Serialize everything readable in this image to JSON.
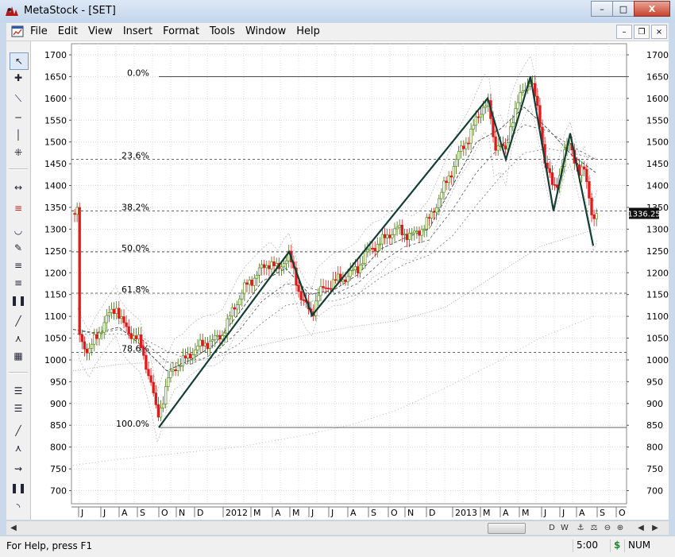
{
  "window": {
    "title": "MetaStock - [SET]",
    "minimize": "–",
    "maximize": "□",
    "close": "X"
  },
  "menu": {
    "file": "File",
    "edit": "Edit",
    "view": "View",
    "insert": "Insert",
    "format": "Format",
    "tools": "Tools",
    "window": "Window",
    "help": "Help"
  },
  "toolbar": {
    "icons": [
      "pointer-icon",
      "crosshair-icon",
      "trendline-icon",
      "horizontal-line-icon",
      "vertical-line-icon",
      "cycle-lines-icon",
      "zoom-icon",
      "gann-fan-icon",
      "arc-icon",
      "pencil-icon",
      "fibonacci-retracement-icon",
      "fibonacci-extension-icon",
      "time-zones-icon",
      "line-icon",
      "speed-resistance-icon",
      "grid-icon",
      "quadrant-lines-icon",
      "tirone-levels-icon",
      "channel-icon",
      "fan-icon",
      "projection-icon",
      "wave-icon",
      "arc-tool-icon"
    ]
  },
  "chart_data": {
    "type": "candlestick",
    "symbol": "SET",
    "y_ticks": [
      700,
      750,
      800,
      850,
      900,
      950,
      1000,
      1050,
      1100,
      1150,
      1200,
      1250,
      1300,
      1350,
      1400,
      1450,
      1500,
      1550,
      1600,
      1650,
      1700
    ],
    "ylim": [
      675,
      1720
    ],
    "x_labels": [
      "J",
      "J",
      "A",
      "S",
      "O",
      "N",
      "D",
      "2012",
      "M",
      "A",
      "M",
      "J",
      "J",
      "A",
      "S",
      "O",
      "N",
      "D",
      "2013",
      "M",
      "A",
      "M",
      "J",
      "J",
      "A",
      "S",
      "O"
    ],
    "last_price_label": "1336.25",
    "last_price": 1336.25,
    "fibonacci": {
      "high": 1650,
      "low": 845,
      "levels": [
        {
          "label": "0.0%",
          "value": 1650,
          "solid": true
        },
        {
          "label": "23.6%",
          "value": 1460,
          "solid": false
        },
        {
          "label": "38.2%",
          "value": 1342,
          "solid": false
        },
        {
          "label": "50.0%",
          "value": 1248,
          "solid": false
        },
        {
          "label": "61.8%",
          "value": 1153,
          "solid": false
        },
        {
          "label": "78.6%",
          "value": 1017,
          "solid": false
        },
        {
          "label": "100.0%",
          "value": 845,
          "solid": true
        }
      ]
    },
    "zigzag": [
      {
        "x": 200,
        "value": 845
      },
      {
        "x": 364,
        "value": 1248
      },
      {
        "x": 393,
        "value": 1102
      },
      {
        "x": 614,
        "value": 1600
      },
      {
        "x": 637,
        "value": 1460
      },
      {
        "x": 668,
        "value": 1650
      },
      {
        "x": 697,
        "value": 1342
      },
      {
        "x": 718,
        "value": 1520
      },
      {
        "x": 747,
        "value": 1262
      }
    ],
    "price_anchors": [
      [
        98,
        1065
      ],
      [
        104,
        1040
      ],
      [
        112,
        1018
      ],
      [
        120,
        1050
      ],
      [
        130,
        1080
      ],
      [
        138,
        1105
      ],
      [
        146,
        1125
      ],
      [
        152,
        1090
      ],
      [
        160,
        1070
      ],
      [
        168,
        1055
      ],
      [
        176,
        1040
      ],
      [
        184,
        990
      ],
      [
        192,
        930
      ],
      [
        198,
        870
      ],
      [
        204,
        900
      ],
      [
        212,
        955
      ],
      [
        220,
        985
      ],
      [
        230,
        995
      ],
      [
        240,
        1015
      ],
      [
        250,
        1030
      ],
      [
        260,
        1040
      ],
      [
        270,
        1045
      ],
      [
        280,
        1060
      ],
      [
        290,
        1100
      ],
      [
        300,
        1140
      ],
      [
        310,
        1170
      ],
      [
        320,
        1190
      ],
      [
        330,
        1210
      ],
      [
        340,
        1225
      ],
      [
        350,
        1205
      ],
      [
        358,
        1230
      ],
      [
        364,
        1240
      ],
      [
        370,
        1200
      ],
      [
        378,
        1150
      ],
      [
        386,
        1120
      ],
      [
        393,
        1105
      ],
      [
        400,
        1150
      ],
      [
        410,
        1165
      ],
      [
        420,
        1180
      ],
      [
        430,
        1185
      ],
      [
        440,
        1195
      ],
      [
        450,
        1210
      ],
      [
        460,
        1240
      ],
      [
        470,
        1260
      ],
      [
        480,
        1270
      ],
      [
        490,
        1290
      ],
      [
        500,
        1300
      ],
      [
        510,
        1290
      ],
      [
        520,
        1285
      ],
      [
        530,
        1300
      ],
      [
        540,
        1320
      ],
      [
        550,
        1360
      ],
      [
        560,
        1400
      ],
      [
        570,
        1440
      ],
      [
        580,
        1480
      ],
      [
        590,
        1510
      ],
      [
        600,
        1550
      ],
      [
        610,
        1590
      ],
      [
        616,
        1580
      ],
      [
        622,
        1490
      ],
      [
        630,
        1500
      ],
      [
        637,
        1470
      ],
      [
        644,
        1550
      ],
      [
        652,
        1590
      ],
      [
        660,
        1620
      ],
      [
        668,
        1645
      ],
      [
        674,
        1600
      ],
      [
        680,
        1540
      ],
      [
        686,
        1460
      ],
      [
        692,
        1420
      ],
      [
        697,
        1390
      ],
      [
        704,
        1420
      ],
      [
        712,
        1480
      ],
      [
        718,
        1500
      ],
      [
        724,
        1460
      ],
      [
        730,
        1420
      ],
      [
        736,
        1440
      ],
      [
        742,
        1380
      ],
      [
        747,
        1310
      ],
      [
        752,
        1336
      ]
    ],
    "moving_averages": {
      "ma_short": [
        [
          92,
          1070
        ],
        [
          120,
          1062
        ],
        [
          150,
          1075
        ],
        [
          180,
          1030
        ],
        [
          210,
          975
        ],
        [
          240,
          1000
        ],
        [
          270,
          1035
        ],
        [
          300,
          1105
        ],
        [
          330,
          1180
        ],
        [
          360,
          1210
        ],
        [
          390,
          1150
        ],
        [
          420,
          1160
        ],
        [
          450,
          1195
        ],
        [
          480,
          1255
        ],
        [
          510,
          1280
        ],
        [
          540,
          1300
        ],
        [
          570,
          1400
        ],
        [
          600,
          1500
        ],
        [
          630,
          1530
        ],
        [
          660,
          1580
        ],
        [
          690,
          1530
        ],
        [
          720,
          1470
        ],
        [
          750,
          1430
        ]
      ],
      "ma_mid": [
        [
          92,
          1070
        ],
        [
          120,
          1060
        ],
        [
          150,
          1070
        ],
        [
          180,
          1045
        ],
        [
          210,
          995
        ],
        [
          240,
          990
        ],
        [
          270,
          1015
        ],
        [
          300,
          1065
        ],
        [
          330,
          1135
        ],
        [
          360,
          1175
        ],
        [
          390,
          1165
        ],
        [
          420,
          1150
        ],
        [
          450,
          1175
        ],
        [
          480,
          1225
        ],
        [
          510,
          1260
        ],
        [
          540,
          1275
        ],
        [
          570,
          1345
        ],
        [
          600,
          1430
        ],
        [
          630,
          1490
        ],
        [
          660,
          1540
        ],
        [
          690,
          1525
        ],
        [
          720,
          1490
        ],
        [
          750,
          1460
        ]
      ],
      "ma_long": [
        [
          92,
          1060
        ],
        [
          120,
          1058
        ],
        [
          150,
          1060
        ],
        [
          180,
          1050
        ],
        [
          210,
          1020
        ],
        [
          240,
          1000
        ],
        [
          270,
          1005
        ],
        [
          300,
          1035
        ],
        [
          330,
          1085
        ],
        [
          360,
          1125
        ],
        [
          390,
          1135
        ],
        [
          420,
          1135
        ],
        [
          450,
          1150
        ],
        [
          480,
          1190
        ],
        [
          510,
          1220
        ],
        [
          540,
          1240
        ],
        [
          570,
          1285
        ],
        [
          600,
          1355
        ],
        [
          630,
          1420
        ],
        [
          660,
          1475
        ],
        [
          690,
          1485
        ],
        [
          720,
          1475
        ],
        [
          750,
          1460
        ]
      ],
      "ma_200": [
        [
          92,
          975
        ],
        [
          150,
          990
        ],
        [
          200,
          995
        ],
        [
          260,
          1000
        ],
        [
          320,
          1030
        ],
        [
          380,
          1055
        ],
        [
          440,
          1075
        ],
        [
          500,
          1090
        ],
        [
          560,
          1120
        ],
        [
          620,
          1190
        ],
        [
          680,
          1260
        ],
        [
          750,
          1300
        ]
      ],
      "ma_slow": [
        [
          92,
          758
        ],
        [
          150,
          772
        ],
        [
          220,
          785
        ],
        [
          300,
          800
        ],
        [
          380,
          826
        ],
        [
          440,
          850
        ],
        [
          500,
          885
        ],
        [
          560,
          935
        ],
        [
          620,
          990
        ],
        [
          680,
          1050
        ],
        [
          750,
          1102
        ]
      ]
    }
  },
  "scrollbar": {
    "left": "◀",
    "right": "▶",
    "icons": [
      "day-view-icon",
      "week-view-icon",
      "zoom-out-icon",
      "zoom-in-icon",
      "fit-icon",
      "prev-icon",
      "next-icon"
    ]
  },
  "scroll_labels": [
    "D",
    "W",
    "⚓",
    "⚖",
    "⊖",
    "⊕",
    "◀",
    "▶"
  ],
  "status": {
    "help": "For Help, press F1",
    "time": "5:00",
    "dollar": "$",
    "num": "NUM"
  }
}
